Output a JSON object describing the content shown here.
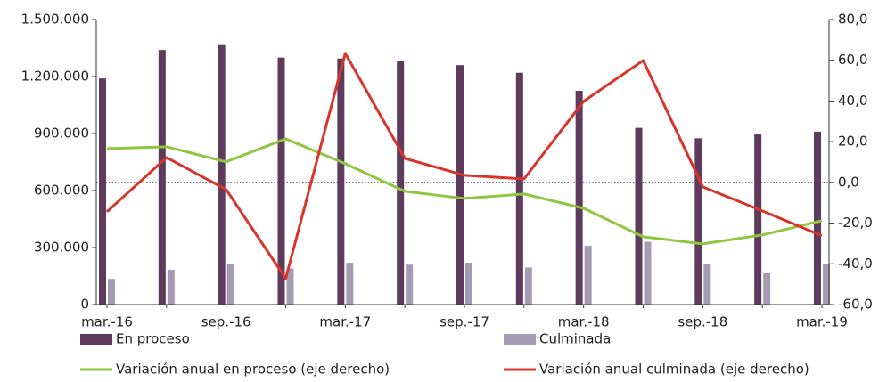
{
  "chart_data": {
    "type": "bar",
    "categories": [
      "mar.-16",
      null,
      "sep.-16",
      null,
      "mar.-17",
      null,
      "sep.-17",
      null,
      "mar.-18",
      null,
      "sep.-18",
      null,
      "mar.-19"
    ],
    "series": [
      {
        "name": "En proceso",
        "color": "#5e3a5c",
        "values": [
          1190000,
          1340000,
          1370000,
          1300000,
          1295000,
          1280000,
          1260000,
          1220000,
          1125000,
          930000,
          875000,
          895000,
          910000
        ]
      },
      {
        "name": "Culminada",
        "color": "#a59cb3",
        "values": [
          135000,
          183000,
          215000,
          190000,
          220000,
          210000,
          220000,
          195000,
          310000,
          330000,
          215000,
          165000,
          215000
        ]
      },
      {
        "name": "Variación anual en proceso (eje derecho)",
        "color": "#8dc63f",
        "type": "line",
        "axis": "y2",
        "values": [
          16.6,
          17.5,
          10.1,
          21.4,
          9.2,
          -4.4,
          -7.9,
          -5.7,
          -12.7,
          -26.7,
          -30.2,
          -25.8,
          -18.8
        ]
      },
      {
        "name": "Variación anual culminada (eje derecho)",
        "color": "#d9342b",
        "type": "line",
        "axis": "y2",
        "values": [
          -14.4,
          12.2,
          -3.5,
          -47.2,
          63.4,
          11.8,
          3.5,
          1.7,
          39.8,
          59.9,
          -2.2,
          -14.0,
          -26.2
        ]
      }
    ],
    "ylim": [
      0,
      1500000
    ],
    "yticks": [
      0,
      {
        "value": 300000,
        "label": "300.000"
      },
      {
        "value": 600000,
        "label": "600.000"
      },
      {
        "value": 900000,
        "label": "900.000"
      },
      {
        "value": 1200000,
        "label": "1.200.000"
      },
      {
        "value": 1500000,
        "label": "1.500.000"
      }
    ],
    "y2lim": [
      -60,
      80
    ],
    "y2ticks": [
      {
        "value": -60,
        "label": "-60,0"
      },
      {
        "value": -40,
        "label": "-40,0"
      },
      {
        "value": -20,
        "label": "-20,0"
      },
      {
        "value": 0,
        "label": "0,0"
      },
      {
        "value": 20,
        "label": "20,0"
      },
      {
        "value": 40,
        "label": "40,0"
      },
      {
        "value": 60,
        "label": "60,0"
      },
      {
        "value": 80,
        "label": "80,0"
      }
    ]
  }
}
